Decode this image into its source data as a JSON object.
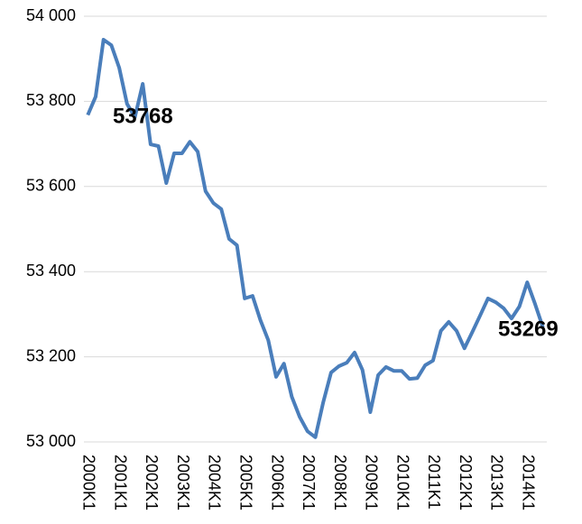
{
  "chart_data": {
    "type": "line",
    "categories": [
      "2000K1",
      null,
      null,
      null,
      "2001K1",
      null,
      null,
      null,
      "2002K1",
      null,
      null,
      null,
      "2003K1",
      null,
      null,
      null,
      "2004K1",
      null,
      null,
      null,
      "2005K1",
      null,
      null,
      null,
      "2006K1",
      null,
      null,
      null,
      "2007K1",
      null,
      null,
      null,
      "2008K1",
      null,
      null,
      null,
      "2009K1",
      null,
      null,
      null,
      "2010K1",
      null,
      null,
      null,
      "2011K1",
      null,
      null,
      null,
      "2012K1",
      null,
      null,
      null,
      "2013K1",
      null,
      null,
      null,
      "2014K1",
      null,
      null
    ],
    "series": [
      {
        "color": "#4a7ebb",
        "values": [
          53768,
          53811,
          53945,
          53932,
          53879,
          53794,
          53763,
          53841,
          53699,
          53695,
          53608,
          53678,
          53678,
          53705,
          53682,
          53589,
          53561,
          53547,
          53477,
          53462,
          53337,
          53343,
          53286,
          53239,
          53153,
          53184,
          53106,
          53059,
          53025,
          53011,
          53093,
          53163,
          53178,
          53186,
          53210,
          53169,
          53070,
          53157,
          53176,
          53167,
          53167,
          53148,
          53150,
          53180,
          53191,
          53261,
          53282,
          53261,
          53220,
          53258,
          53297,
          53337,
          53328,
          53314,
          53290,
          53318,
          53375,
          53324,
          53269
        ]
      }
    ],
    "ylim": [
      53000,
      54000
    ],
    "yticks": [
      {
        "value": 53000,
        "label": "53 000"
      },
      {
        "value": 53200,
        "label": "53 200"
      },
      {
        "value": 53400,
        "label": "53 400"
      },
      {
        "value": 53600,
        "label": "53 600"
      },
      {
        "value": 53800,
        "label": "53 800"
      },
      {
        "value": 54000,
        "label": "54 000"
      }
    ],
    "grid": true
  }
}
